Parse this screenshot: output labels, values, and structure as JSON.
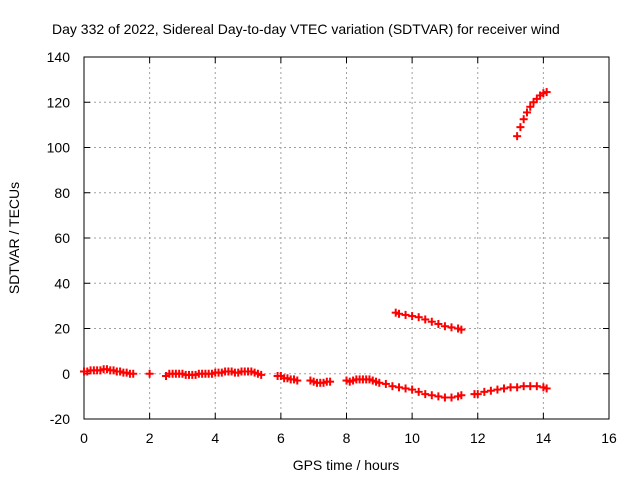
{
  "chart_data": {
    "type": "scatter",
    "title": "Day 332 of 2022, Sidereal Day-to-day VTEC variation (SDTVAR) for receiver wind",
    "xlabel": "GPS time / hours",
    "ylabel": "SDTVAR / TECUs",
    "xlim": [
      0,
      16
    ],
    "ylim": [
      -20,
      140
    ],
    "xticks": [
      "0",
      "2",
      "4",
      "6",
      "8",
      "10",
      "12",
      "14",
      "16"
    ],
    "yticks": [
      "-20",
      "0",
      "20",
      "40",
      "60",
      "80",
      "100",
      "120",
      "140"
    ],
    "grid": true,
    "marker": "plus",
    "color": "#ff0000",
    "series": [
      {
        "name": "segment-1",
        "x": [
          0.0,
          0.1,
          0.2,
          0.3,
          0.4,
          0.5,
          0.6,
          0.7,
          0.8,
          0.9,
          1.0,
          1.1,
          1.2,
          1.3,
          1.4,
          1.5
        ],
        "y": [
          1,
          1,
          1.5,
          1.5,
          1.5,
          1.5,
          2,
          2,
          1.5,
          1.5,
          1,
          1,
          0.5,
          0.5,
          0,
          0
        ]
      },
      {
        "name": "segment-2",
        "x": [
          2.0
        ],
        "y": [
          0
        ]
      },
      {
        "name": "segment-3",
        "x": [
          2.5,
          2.6,
          2.7,
          2.8,
          2.9,
          3.0,
          3.1,
          3.2,
          3.3,
          3.4,
          3.5,
          3.6,
          3.7,
          3.8,
          3.9,
          4.0,
          4.1,
          4.2,
          4.3,
          4.4,
          4.5,
          4.6,
          4.7,
          4.8,
          4.9,
          5.0,
          5.1,
          5.2,
          5.3,
          5.4
        ],
        "y": [
          -1,
          0,
          0,
          0,
          0,
          0,
          -0.5,
          -0.5,
          -0.5,
          -0.5,
          0,
          0,
          0,
          0,
          0,
          0.5,
          0.5,
          0.5,
          1,
          1,
          1,
          0.5,
          0.5,
          1,
          1,
          1,
          1,
          0.5,
          0,
          -0.5
        ]
      },
      {
        "name": "segment-4",
        "x": [
          5.9,
          6.0,
          6.1,
          6.2,
          6.3,
          6.4,
          6.5
        ],
        "y": [
          -1,
          -1,
          -2,
          -2,
          -2.5,
          -2.5,
          -3
        ]
      },
      {
        "name": "segment-5",
        "x": [
          6.9,
          7.0,
          7.1,
          7.2,
          7.3,
          7.4,
          7.5
        ],
        "y": [
          -3,
          -3.5,
          -4,
          -4,
          -4,
          -3.5,
          -3.5
        ]
      },
      {
        "name": "segment-6",
        "x": [
          8.0,
          8.1,
          8.2,
          8.3,
          8.4,
          8.5,
          8.6,
          8.7,
          8.8,
          8.9,
          9.0,
          9.2,
          9.4,
          9.6,
          9.8,
          10.0,
          10.2,
          10.4,
          10.6,
          10.8,
          11.0,
          11.2,
          11.4,
          11.5
        ],
        "y": [
          -3,
          -3.5,
          -3,
          -2.5,
          -2.5,
          -2.5,
          -2.5,
          -2.5,
          -3,
          -3.5,
          -4,
          -4.5,
          -5.5,
          -6,
          -6.5,
          -7,
          -8,
          -9,
          -9.5,
          -10,
          -10.5,
          -10.5,
          -10,
          -9.5
        ]
      },
      {
        "name": "segment-7",
        "x": [
          11.9,
          12.0,
          12.2,
          12.4,
          12.6,
          12.8,
          13.0,
          13.2,
          13.4,
          13.6,
          13.8,
          14.0,
          14.1
        ],
        "y": [
          -9,
          -9,
          -8,
          -7.5,
          -7,
          -6.5,
          -6,
          -6,
          -5.5,
          -5.5,
          -5.5,
          -6,
          -6.5
        ]
      },
      {
        "name": "segment-8",
        "x": [
          9.5,
          9.6,
          9.8,
          10.0,
          10.2,
          10.4,
          10.6,
          10.8,
          11.0,
          11.2,
          11.4,
          11.5
        ],
        "y": [
          27,
          26.5,
          26,
          25.5,
          25,
          24,
          23,
          22,
          21,
          20.5,
          20,
          19.5
        ]
      },
      {
        "name": "segment-9",
        "x": [
          13.2,
          13.3,
          13.4,
          13.5,
          13.6,
          13.7,
          13.8,
          13.9,
          14.0,
          14.1
        ],
        "y": [
          105,
          109,
          112.5,
          115.5,
          118,
          120,
          121.5,
          123,
          124,
          124.5
        ]
      }
    ]
  }
}
